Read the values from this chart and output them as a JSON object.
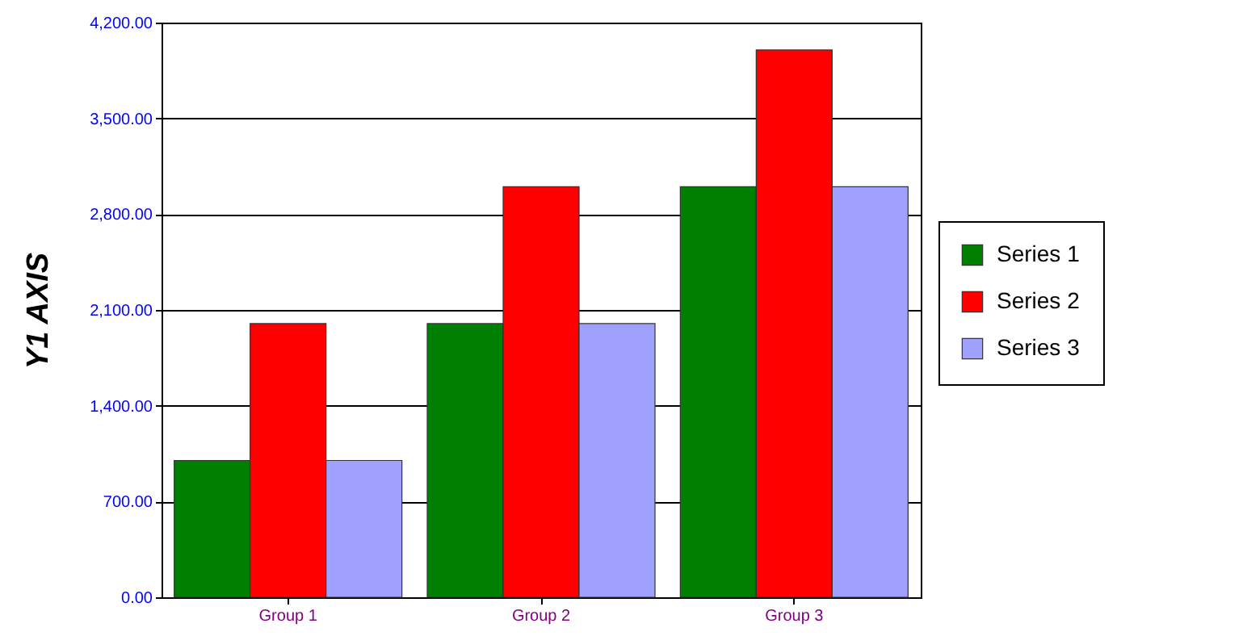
{
  "chart_data": {
    "type": "bar",
    "ylabel": "Y1 AXIS",
    "categories": [
      "Group 1",
      "Group 2",
      "Group 3"
    ],
    "series": [
      {
        "name": "Series 1",
        "color": "#008000",
        "values": [
          1000,
          2000,
          3000
        ]
      },
      {
        "name": "Series 2",
        "color": "#ff0000",
        "values": [
          2000,
          3000,
          4000
        ]
      },
      {
        "name": "Series 3",
        "color": "#a0a0ff",
        "values": [
          1000,
          2000,
          3000
        ]
      }
    ],
    "ylim": [
      0,
      4200
    ],
    "yticks": [
      {
        "value": 0,
        "label": "0.00"
      },
      {
        "value": 700,
        "label": "700.00"
      },
      {
        "value": 1400,
        "label": "1,400.00"
      },
      {
        "value": 2100,
        "label": "2,100.00"
      },
      {
        "value": 2800,
        "label": "2,800.00"
      },
      {
        "value": 3500,
        "label": "3,500.00"
      },
      {
        "value": 4200,
        "label": "4,200.00"
      }
    ],
    "grid": "y",
    "legend": "right"
  }
}
